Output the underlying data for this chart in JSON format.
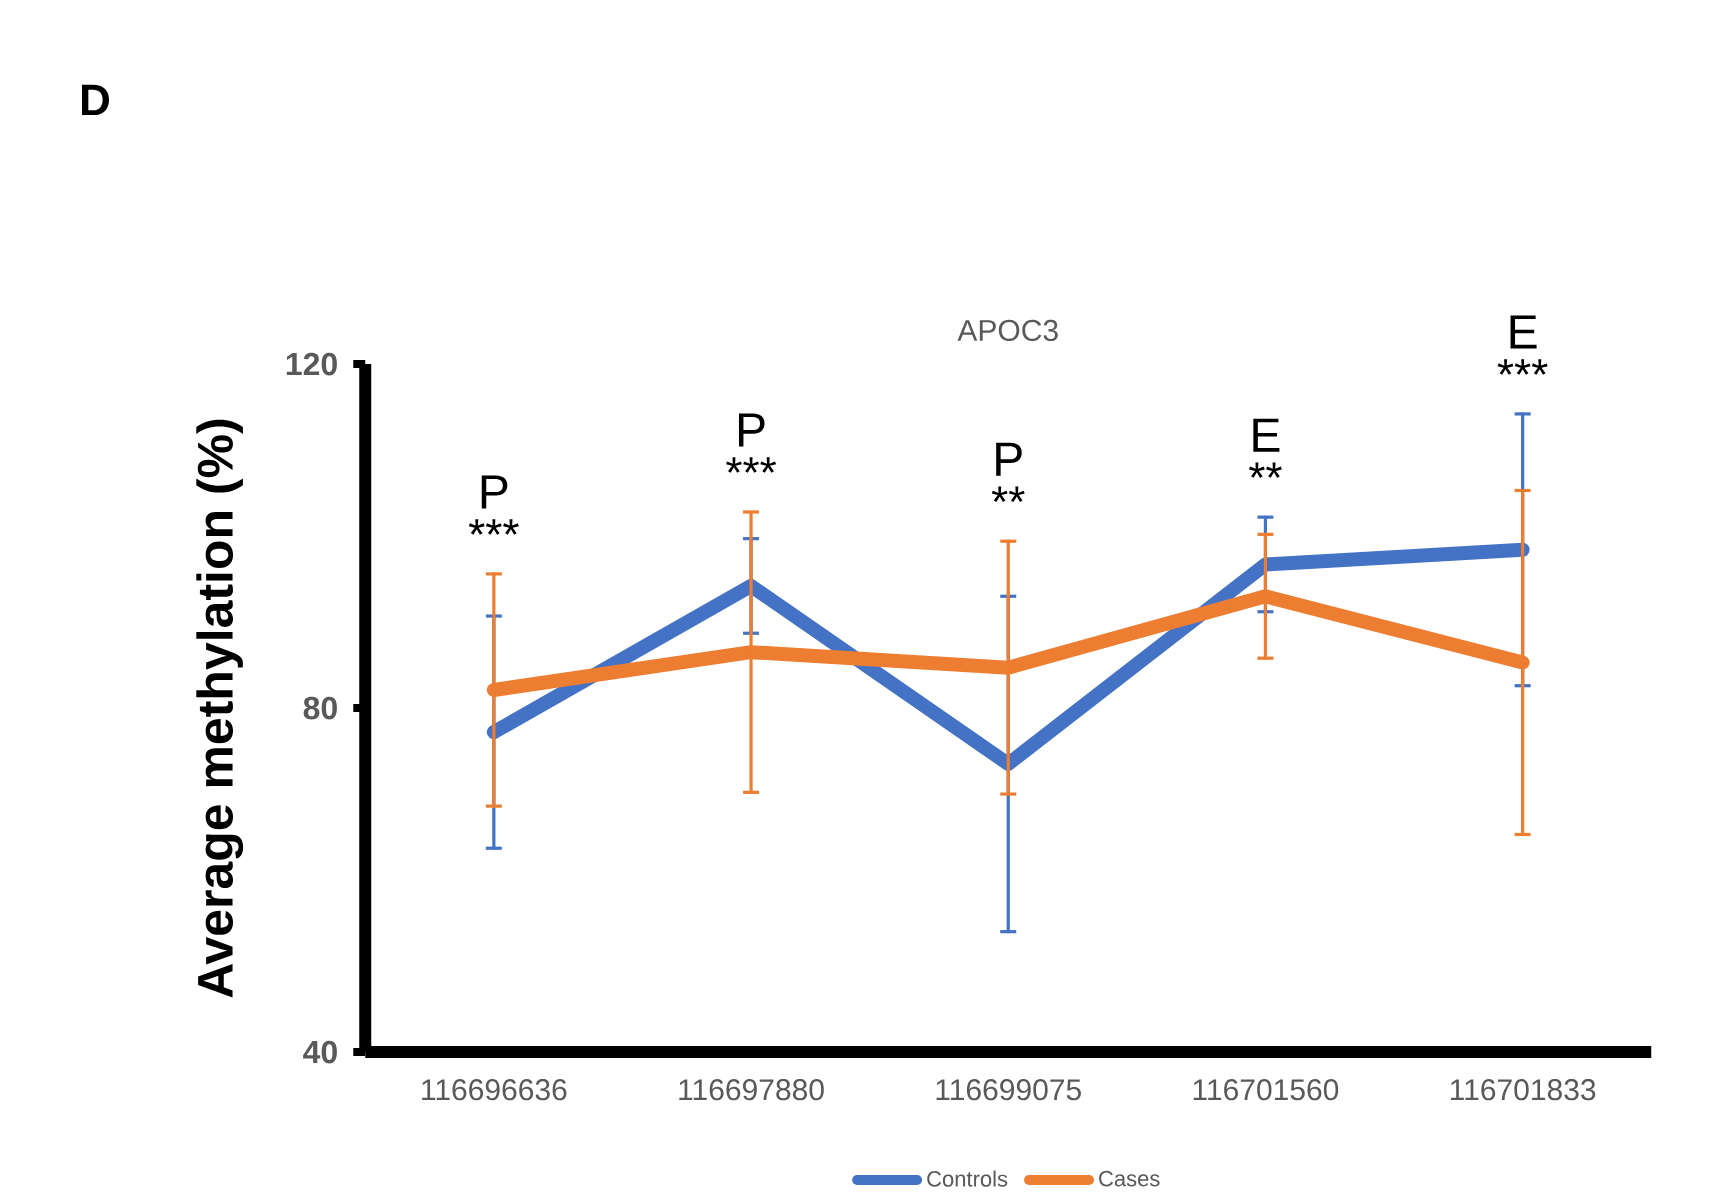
{
  "chart_data": {
    "type": "line",
    "title": "APOC3",
    "ylabel": "Average methylation (%)",
    "categories": [
      "116696636",
      "116697880",
      "116699075",
      "116701560",
      "116701833"
    ],
    "series": [
      {
        "name": "Controls",
        "color": "#4472c4",
        "values": [
          77.2,
          94.2,
          73.5,
          96.7,
          98.4
        ],
        "errors": [
          13.5,
          5.5,
          19.5,
          5.5,
          15.8
        ]
      },
      {
        "name": "Cases",
        "color": "#ed7d31",
        "values": [
          82.1,
          86.5,
          84.7,
          93.0,
          85.3
        ],
        "errors": [
          13.5,
          16.3,
          14.7,
          7.2,
          20.0
        ]
      }
    ],
    "ylim": [
      40,
      120
    ],
    "yticks": [
      40,
      80,
      120
    ],
    "grid": false,
    "legend": "bottom",
    "marker": "none",
    "line_style": "solid",
    "annotations": [
      "D",
      "P",
      "***",
      "P",
      "***",
      "P",
      "**",
      "E",
      "**",
      "E",
      "***"
    ]
  }
}
